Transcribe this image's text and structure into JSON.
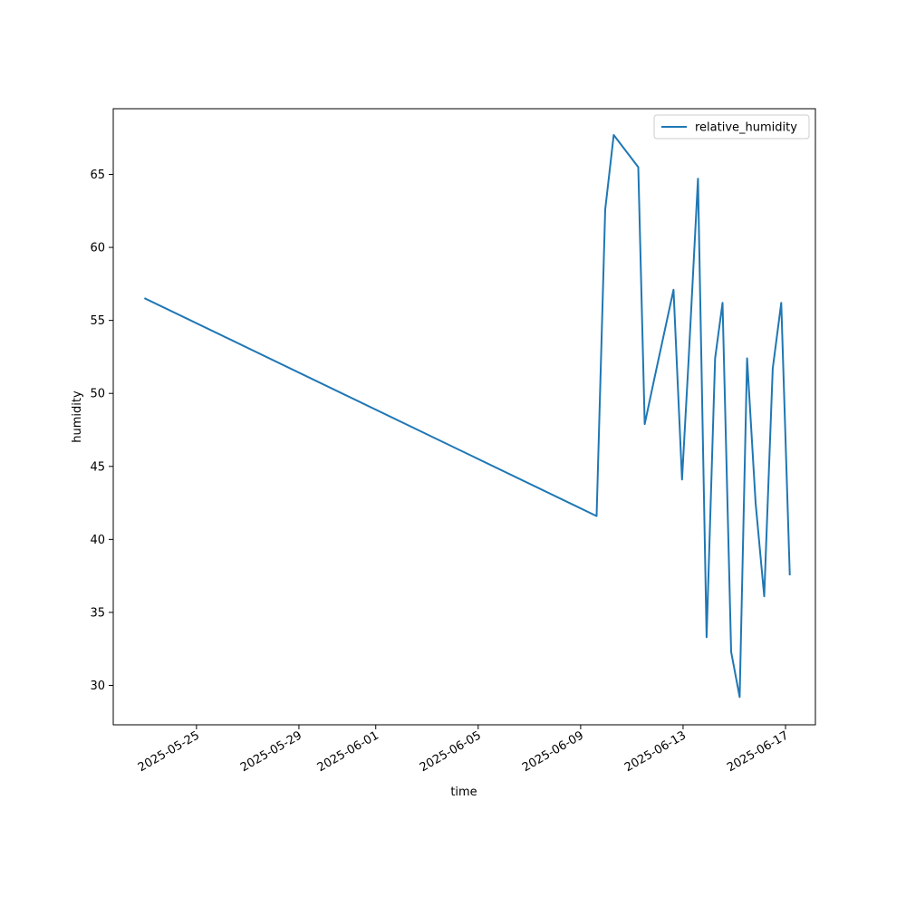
{
  "chart_data": {
    "type": "line",
    "title": "",
    "xlabel": "time",
    "ylabel": "humidity",
    "x_tick_labels": [
      "2025-05-25",
      "2025-05-29",
      "2025-06-01",
      "2025-06-05",
      "2025-06-09",
      "2025-06-13",
      "2025-06-17"
    ],
    "y_ticks": [
      30,
      35,
      40,
      45,
      50,
      55,
      60,
      65
    ],
    "xlim": [
      "2025-05-21T18:00",
      "2025-06-18T04:00"
    ],
    "ylim": [
      27.3,
      69.5
    ],
    "grid": false,
    "legend_position": "top-right",
    "series": [
      {
        "name": "relative_humidity",
        "color": "#1f77b4",
        "points": [
          {
            "x": "2025-05-23T00:00",
            "y": 56.5
          },
          {
            "x": "2025-06-09T15:00",
            "y": 41.6
          },
          {
            "x": "2025-06-09T23:00",
            "y": 62.6
          },
          {
            "x": "2025-06-10T07:00",
            "y": 67.7
          },
          {
            "x": "2025-06-11T06:00",
            "y": 65.5
          },
          {
            "x": "2025-06-11T12:00",
            "y": 47.9
          },
          {
            "x": "2025-06-11T21:00",
            "y": 51.0
          },
          {
            "x": "2025-06-12T15:00",
            "y": 57.1
          },
          {
            "x": "2025-06-12T23:00",
            "y": 44.1
          },
          {
            "x": "2025-06-13T05:00",
            "y": 52.0
          },
          {
            "x": "2025-06-13T14:00",
            "y": 64.7
          },
          {
            "x": "2025-06-13T22:00",
            "y": 33.3
          },
          {
            "x": "2025-06-14T06:00",
            "y": 52.4
          },
          {
            "x": "2025-06-14T13:00",
            "y": 56.2
          },
          {
            "x": "2025-06-14T21:00",
            "y": 32.3
          },
          {
            "x": "2025-06-15T05:00",
            "y": 29.2
          },
          {
            "x": "2025-06-15T12:00",
            "y": 52.4
          },
          {
            "x": "2025-06-15T20:00",
            "y": 42.5
          },
          {
            "x": "2025-06-16T04:00",
            "y": 36.1
          },
          {
            "x": "2025-06-16T12:00",
            "y": 51.7
          },
          {
            "x": "2025-06-16T20:00",
            "y": 56.2
          },
          {
            "x": "2025-06-17T04:00",
            "y": 37.6
          }
        ]
      }
    ]
  }
}
